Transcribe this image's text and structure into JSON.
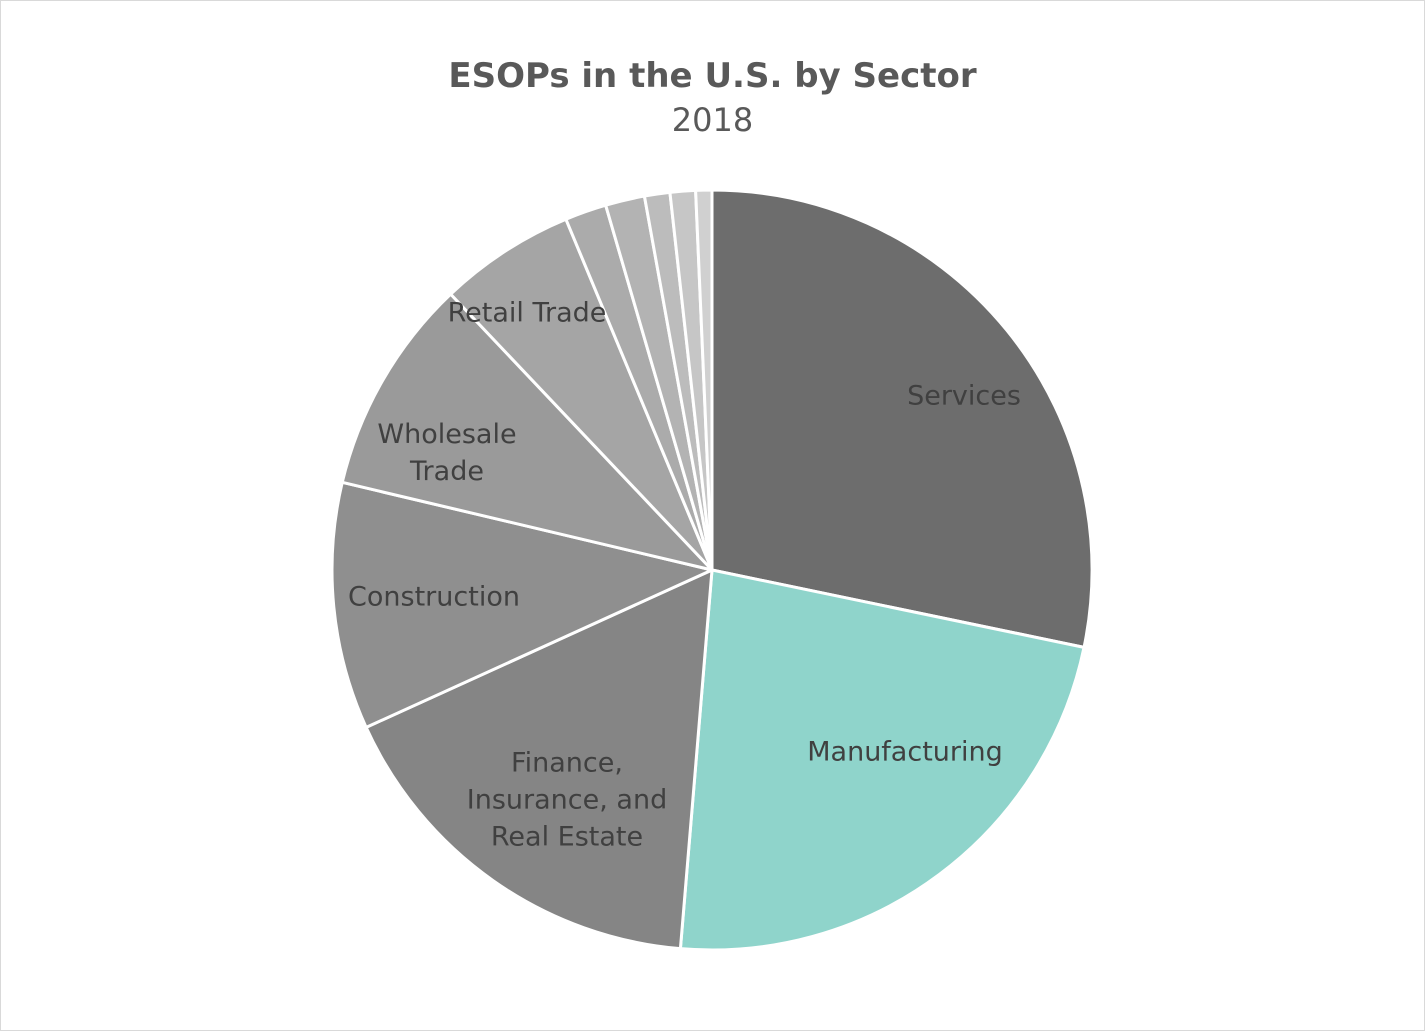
{
  "chart_data": {
    "type": "pie",
    "title": "ESOPs in the U.S. by Sector",
    "subtitle": "2018",
    "start_angle_deg": 0,
    "direction": "clockwise",
    "slices": [
      {
        "label": "Services",
        "lines": [
          "Services"
        ],
        "value": 28.8,
        "color": "#6d6d6d"
      },
      {
        "label": "Manufacturing",
        "lines": [
          "Manufacturing"
        ],
        "value": 23.5,
        "color": "#8fd4cb"
      },
      {
        "label": "Finance, Insurance, and Real Estate",
        "lines": [
          "Finance,",
          "Insurance, and",
          "Real Estate"
        ],
        "value": 17.2,
        "color": "#858585"
      },
      {
        "label": "Construction",
        "lines": [
          "Construction"
        ],
        "value": 10.7,
        "color": "#8f8f8f"
      },
      {
        "label": "Wholesale Trade",
        "lines": [
          "Wholesale",
          "Trade"
        ],
        "value": 9.4,
        "color": "#9a9a9a"
      },
      {
        "label": "Retail Trade",
        "lines": [
          "Retail Trade"
        ],
        "value": 5.9,
        "color": "#a5a5a5"
      },
      {
        "label": "",
        "lines": [],
        "value": 1.8,
        "color": "#ababab"
      },
      {
        "label": "",
        "lines": [],
        "value": 1.7,
        "color": "#b3b3b3"
      },
      {
        "label": "",
        "lines": [],
        "value": 1.1,
        "color": "#bcbcbc"
      },
      {
        "label": "",
        "lines": [],
        "value": 1.1,
        "color": "#c6c6c6"
      },
      {
        "label": "",
        "lines": [],
        "value": 0.7,
        "color": "#d0d0d0"
      }
    ]
  }
}
